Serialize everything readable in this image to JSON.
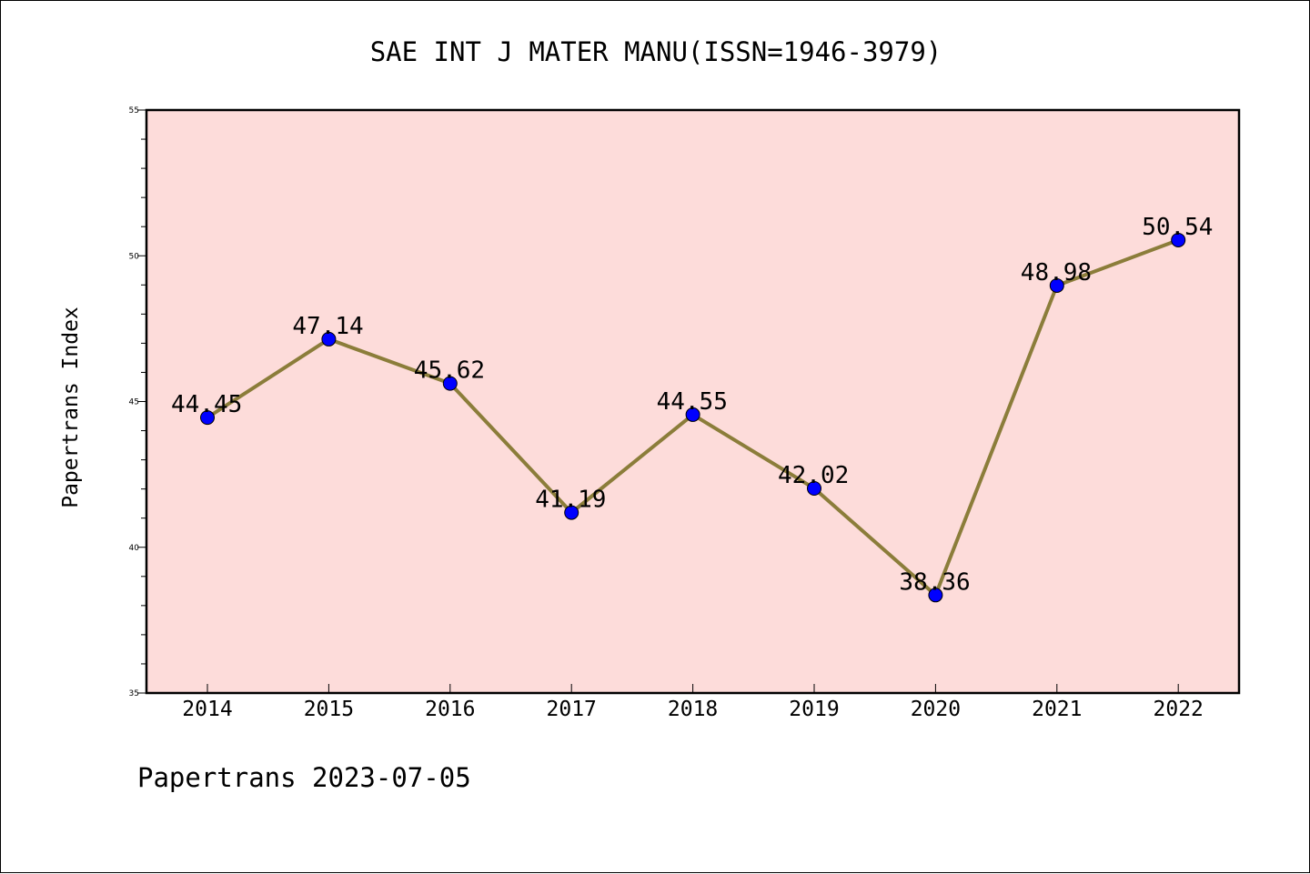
{
  "chart_data": {
    "type": "line",
    "title": "SAE INT J MATER MANU(ISSN=1946-3979)",
    "ylabel": "Papertrans Index",
    "xlabel": "",
    "footer": "Papertrans 2023-07-05",
    "categories": [
      "2014",
      "2015",
      "2016",
      "2017",
      "2018",
      "2019",
      "2020",
      "2021",
      "2022"
    ],
    "series": [
      {
        "values": [
          44.45,
          47.14,
          45.62,
          41.19,
          44.55,
          42.02,
          38.36,
          48.98,
          50.54
        ],
        "labels": [
          "44.45",
          "47.14",
          "45.62",
          "41.19",
          "44.55",
          "42.02",
          "38.36",
          "48.98",
          "50.54"
        ],
        "color": "#8b7d3a",
        "marker_color": "#0000ff"
      }
    ],
    "ylim": [
      35,
      55
    ],
    "yticks": [
      "35",
      "40",
      "45",
      "50",
      "55"
    ],
    "grid": false,
    "plot_background": "#fddcda"
  }
}
